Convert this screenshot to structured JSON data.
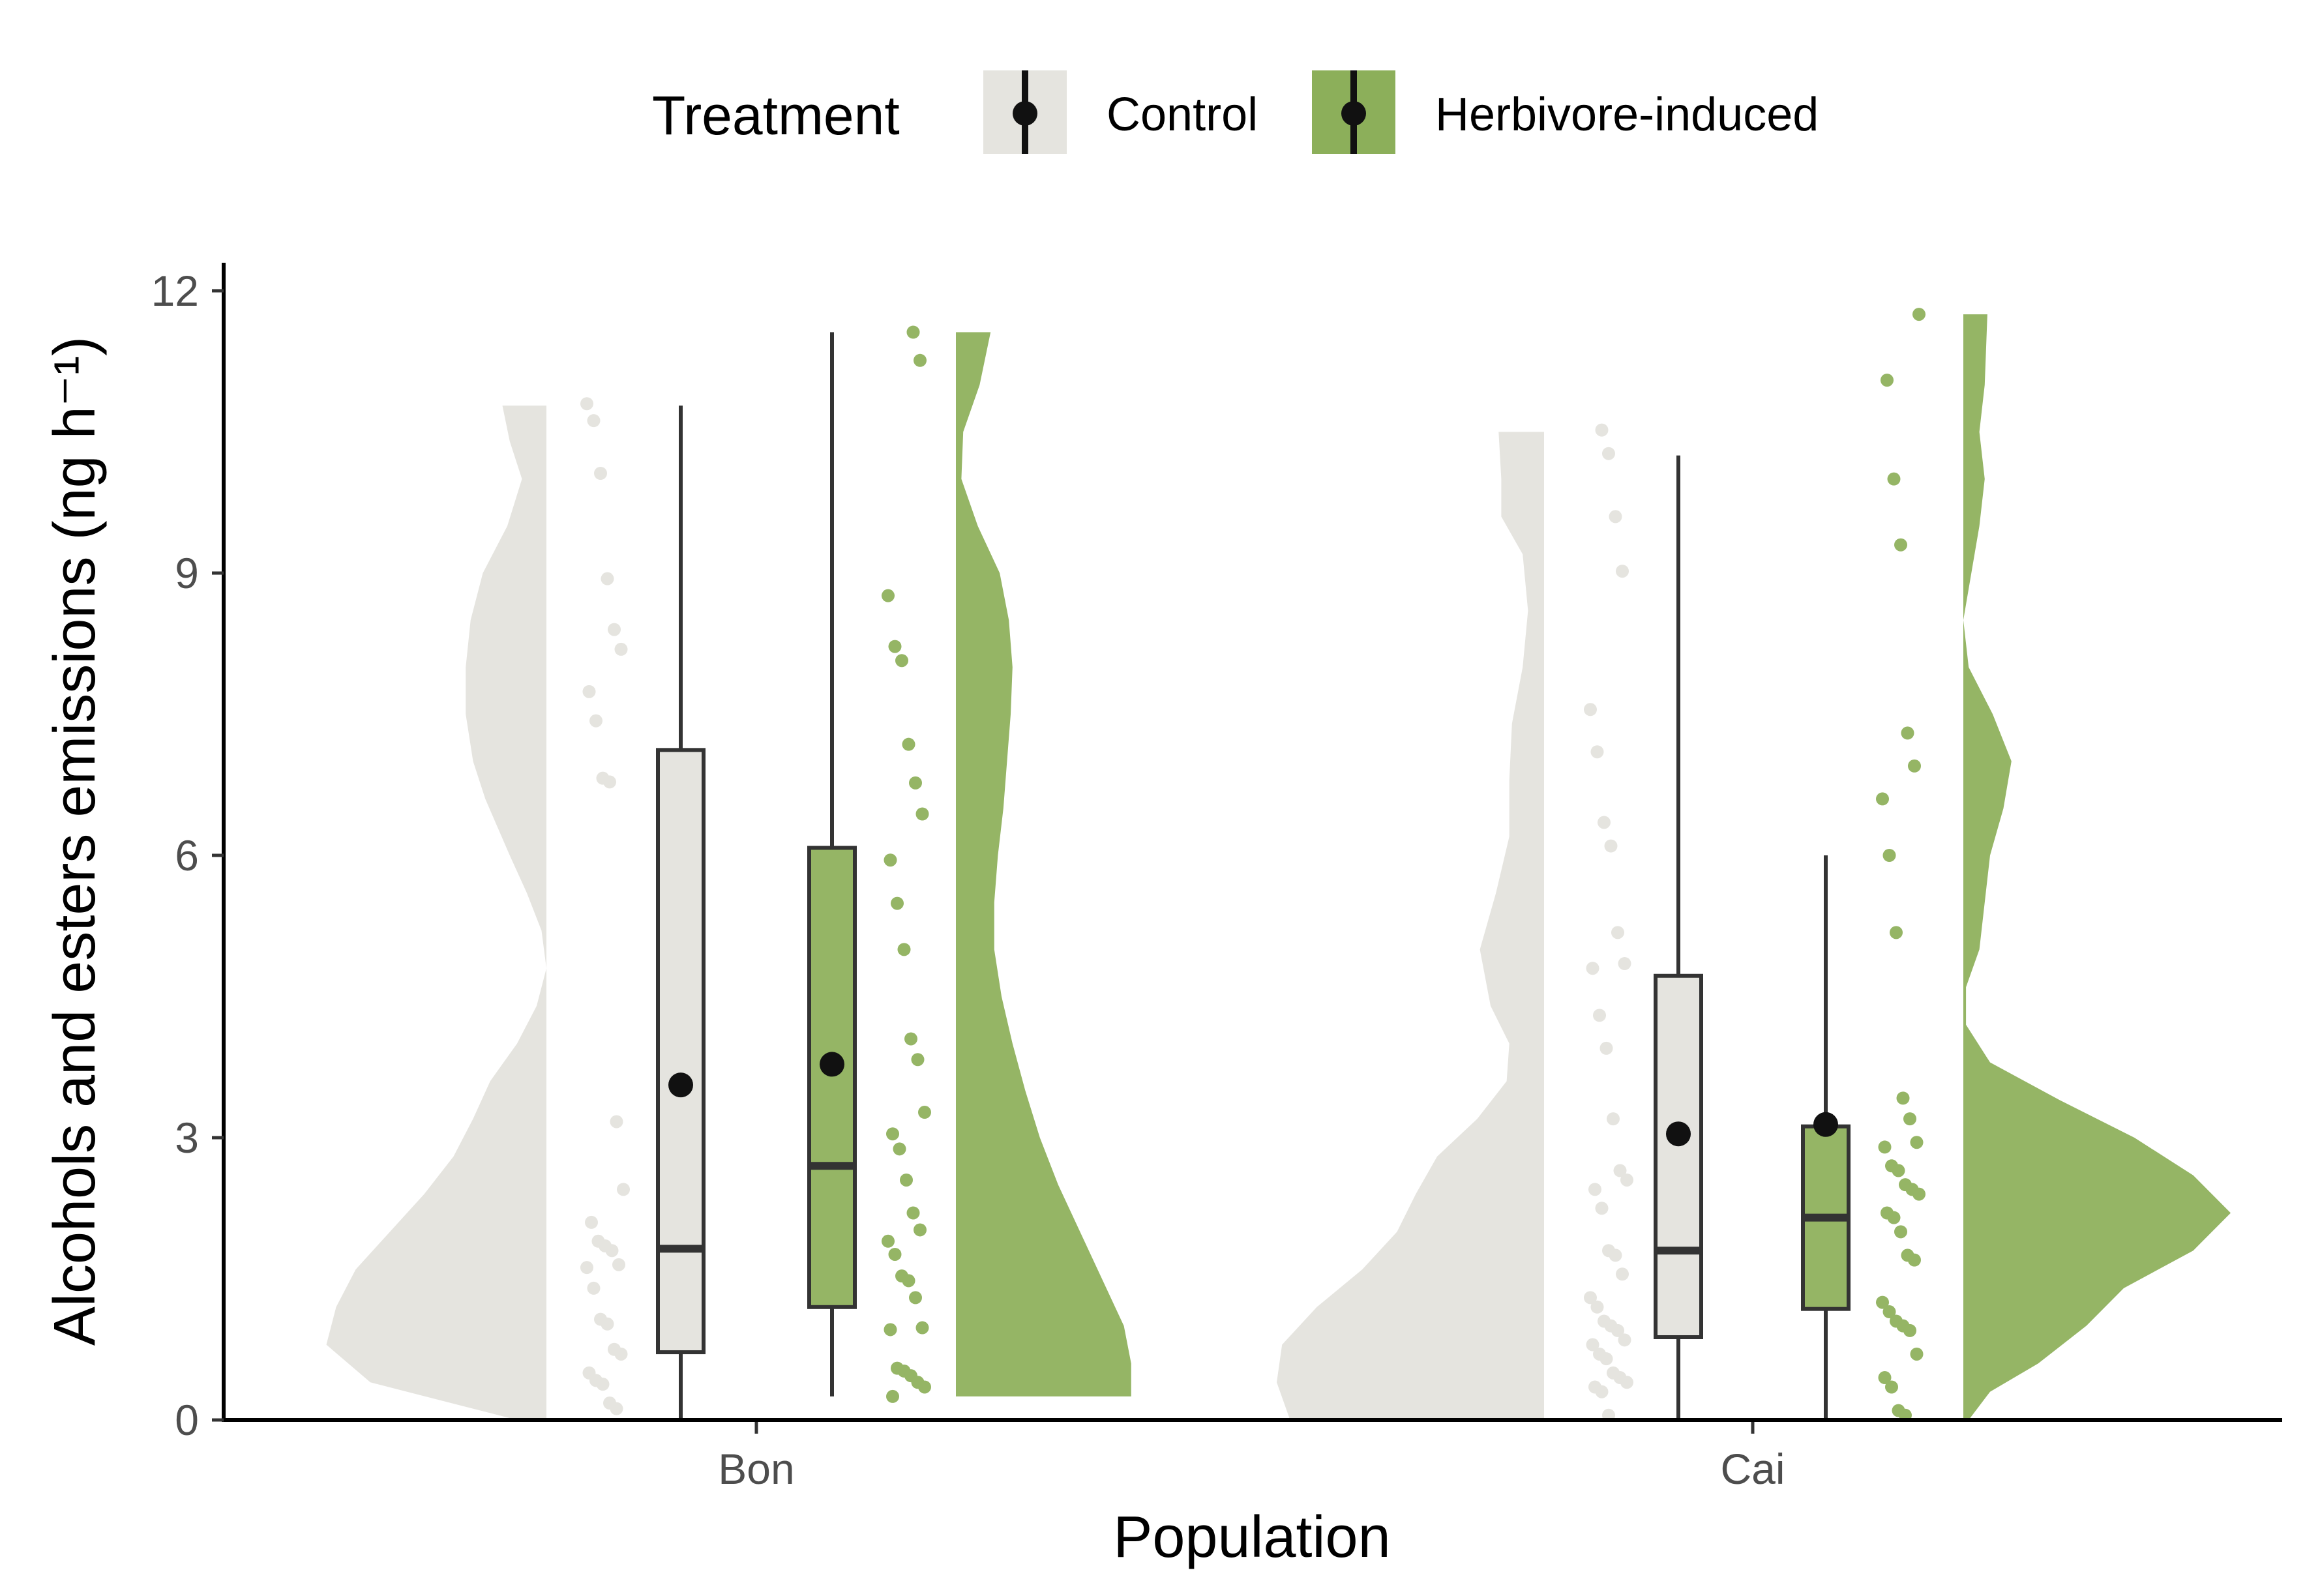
{
  "legend": {
    "title": "Treatment",
    "items": [
      {
        "label": "Control",
        "fill": "#e5e4df"
      },
      {
        "label": "Herbivore-induced",
        "fill": "#8caf5a"
      }
    ]
  },
  "chart_data": {
    "type": "raincloud",
    "xlabel": "Population",
    "ylabel": "Alcohols and esters emissions (ng h⁻¹)",
    "ylim": [
      0,
      12
    ],
    "yticks": [
      0,
      3,
      6,
      9,
      12
    ],
    "categories": [
      "Bon",
      "Cai"
    ],
    "grid": false,
    "legend_position": "top",
    "colors": {
      "Control": "#e5e4df",
      "Herbivore-induced": "#95b565",
      "box_line": "#333333",
      "mean_point": "#111111"
    },
    "groups": [
      {
        "population": "Bon",
        "treatment": "Control",
        "box": {
          "min": 0.0,
          "q1": 0.72,
          "median": 1.82,
          "q3": 7.12,
          "max": 10.78
        },
        "mean": 3.56,
        "points": [
          10.8,
          10.62,
          10.06,
          8.94,
          8.4,
          8.19,
          7.74,
          7.43,
          6.82,
          6.78,
          3.17,
          2.45,
          2.1,
          1.9,
          1.85,
          1.8,
          1.65,
          1.62,
          1.4,
          1.07,
          1.02,
          0.75,
          0.7,
          0.5,
          0.42,
          0.38,
          0.18,
          0.12
        ],
        "density": [
          [
            0.0,
            0.12
          ],
          [
            0.4,
            0.72
          ],
          [
            0.8,
            0.9
          ],
          [
            1.2,
            0.86
          ],
          [
            1.6,
            0.78
          ],
          [
            2.0,
            0.64
          ],
          [
            2.4,
            0.5
          ],
          [
            2.8,
            0.38
          ],
          [
            3.2,
            0.3
          ],
          [
            3.6,
            0.23
          ],
          [
            4.0,
            0.12
          ],
          [
            4.4,
            0.04
          ],
          [
            4.8,
            0.0
          ],
          [
            5.2,
            0.02
          ],
          [
            5.6,
            0.08
          ],
          [
            6.0,
            0.15
          ],
          [
            6.6,
            0.25
          ],
          [
            7.0,
            0.3
          ],
          [
            7.5,
            0.33
          ],
          [
            8.0,
            0.33
          ],
          [
            8.5,
            0.31
          ],
          [
            9.0,
            0.26
          ],
          [
            9.5,
            0.16
          ],
          [
            10.0,
            0.1
          ],
          [
            10.4,
            0.15
          ],
          [
            10.78,
            0.18
          ]
        ]
      },
      {
        "population": "Bon",
        "treatment": "Herbivore-induced",
        "box": {
          "min": 0.25,
          "q1": 1.2,
          "median": 2.7,
          "q3": 6.08,
          "max": 11.56
        },
        "mean": 3.78,
        "points": [
          11.56,
          11.26,
          8.76,
          8.22,
          8.07,
          7.18,
          6.77,
          6.44,
          5.95,
          5.49,
          5.0,
          4.05,
          3.83,
          3.27,
          3.04,
          2.88,
          2.55,
          2.2,
          2.02,
          1.9,
          1.76,
          1.53,
          1.48,
          1.3,
          0.98,
          0.96,
          0.55,
          0.52,
          0.47,
          0.4,
          0.35,
          0.25
        ],
        "density": [
          [
            0.25,
            0.96
          ],
          [
            0.6,
            0.96
          ],
          [
            1.0,
            0.92
          ],
          [
            1.5,
            0.8
          ],
          [
            2.0,
            0.68
          ],
          [
            2.5,
            0.56
          ],
          [
            3.0,
            0.46
          ],
          [
            3.5,
            0.38
          ],
          [
            4.0,
            0.31
          ],
          [
            4.5,
            0.25
          ],
          [
            5.0,
            0.21
          ],
          [
            5.5,
            0.21
          ],
          [
            6.0,
            0.23
          ],
          [
            6.5,
            0.26
          ],
          [
            7.0,
            0.28
          ],
          [
            7.5,
            0.3
          ],
          [
            8.0,
            0.31
          ],
          [
            8.5,
            0.29
          ],
          [
            9.0,
            0.24
          ],
          [
            9.5,
            0.12
          ],
          [
            10.0,
            0.03
          ],
          [
            10.5,
            0.04
          ],
          [
            11.0,
            0.13
          ],
          [
            11.56,
            0.19
          ]
        ]
      },
      {
        "population": "Cai",
        "treatment": "Control",
        "box": {
          "min": 0.0,
          "q1": 0.88,
          "median": 1.8,
          "q3": 4.72,
          "max": 10.25
        },
        "mean": 3.04,
        "points": [
          10.52,
          10.27,
          9.6,
          9.02,
          7.55,
          7.1,
          6.35,
          6.1,
          5.18,
          4.85,
          4.8,
          4.3,
          3.95,
          3.2,
          2.65,
          2.55,
          2.45,
          2.25,
          1.8,
          1.75,
          1.55,
          1.3,
          1.2,
          1.05,
          1.0,
          0.95,
          0.85,
          0.8,
          0.7,
          0.65,
          0.5,
          0.45,
          0.4,
          0.35,
          0.3,
          0.05
        ],
        "density": [
          [
            0.0,
            0.95
          ],
          [
            0.4,
            1.0
          ],
          [
            0.8,
            0.98
          ],
          [
            1.2,
            0.85
          ],
          [
            1.6,
            0.68
          ],
          [
            2.0,
            0.55
          ],
          [
            2.4,
            0.48
          ],
          [
            2.8,
            0.4
          ],
          [
            3.2,
            0.25
          ],
          [
            3.6,
            0.14
          ],
          [
            4.0,
            0.13
          ],
          [
            4.4,
            0.2
          ],
          [
            5.0,
            0.24
          ],
          [
            5.6,
            0.18
          ],
          [
            6.2,
            0.13
          ],
          [
            6.8,
            0.13
          ],
          [
            7.4,
            0.12
          ],
          [
            8.0,
            0.08
          ],
          [
            8.6,
            0.06
          ],
          [
            9.2,
            0.08
          ],
          [
            9.6,
            0.16
          ],
          [
            10.0,
            0.16
          ],
          [
            10.5,
            0.17
          ]
        ]
      },
      {
        "population": "Cai",
        "treatment": "Herbivore-induced",
        "box": {
          "min": 0.0,
          "q1": 1.18,
          "median": 2.15,
          "q3": 3.12,
          "max": 6.0
        },
        "mean": 3.14,
        "points": [
          11.75,
          11.05,
          10.0,
          9.3,
          7.3,
          6.95,
          6.6,
          6.0,
          5.18,
          3.42,
          3.2,
          2.95,
          2.9,
          2.7,
          2.65,
          2.5,
          2.45,
          2.4,
          2.2,
          2.15,
          2.0,
          1.75,
          1.7,
          1.25,
          1.15,
          1.05,
          1.0,
          0.95,
          0.7,
          0.45,
          0.35,
          0.1,
          0.05
        ],
        "density": [
          [
            0.0,
            0.02
          ],
          [
            0.3,
            0.1
          ],
          [
            0.6,
            0.28
          ],
          [
            1.0,
            0.46
          ],
          [
            1.4,
            0.6
          ],
          [
            1.8,
            0.86
          ],
          [
            2.2,
            1.0
          ],
          [
            2.6,
            0.86
          ],
          [
            3.0,
            0.64
          ],
          [
            3.4,
            0.36
          ],
          [
            3.8,
            0.1
          ],
          [
            4.2,
            0.01
          ],
          [
            4.6,
            0.01
          ],
          [
            5.0,
            0.06
          ],
          [
            5.5,
            0.08
          ],
          [
            6.0,
            0.1
          ],
          [
            6.5,
            0.15
          ],
          [
            7.0,
            0.18
          ],
          [
            7.5,
            0.11
          ],
          [
            8.0,
            0.02
          ],
          [
            8.5,
            0.0
          ],
          [
            9.0,
            0.03
          ],
          [
            9.5,
            0.06
          ],
          [
            10.0,
            0.08
          ],
          [
            10.5,
            0.06
          ],
          [
            11.0,
            0.08
          ],
          [
            11.75,
            0.09
          ]
        ]
      }
    ]
  }
}
